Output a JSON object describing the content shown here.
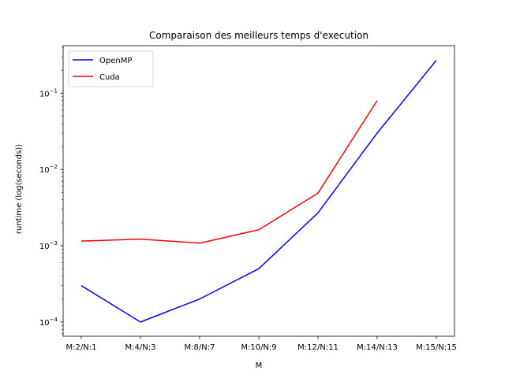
{
  "chart_data": {
    "type": "line",
    "title": "Comparaison des meilleurs temps d'execution",
    "xlabel": "M",
    "ylabel": "runtime (log(seconds))",
    "categories": [
      "M:2/N:1",
      "M:4/N:3",
      "M:8/N:7",
      "M:10/N:9",
      "M:12/N:11",
      "M:14/N:13",
      "M:15/N:15"
    ],
    "yscale": "log",
    "ylim": [
      6.5e-05,
      0.42
    ],
    "yticks": [
      {
        "value": 0.0001,
        "base": "10",
        "exp": "−4"
      },
      {
        "value": 0.001,
        "base": "10",
        "exp": "−3"
      },
      {
        "value": 0.01,
        "base": "10",
        "exp": "−2"
      },
      {
        "value": 0.1,
        "base": "10",
        "exp": "−1"
      }
    ],
    "legend_position": "top-left",
    "series": [
      {
        "name": "OpenMP",
        "color": "#0000ff",
        "values": [
          0.0003,
          0.0001,
          0.0002,
          0.0005,
          0.0027,
          0.03,
          0.27
        ]
      },
      {
        "name": "Cuda",
        "color": "#ff0000",
        "values": [
          0.00115,
          0.00122,
          0.00108,
          0.00162,
          0.0049,
          0.08,
          null
        ]
      }
    ]
  }
}
